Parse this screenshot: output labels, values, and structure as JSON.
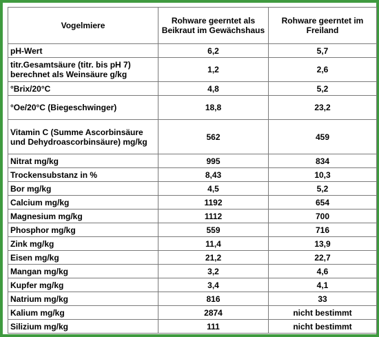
{
  "table": {
    "headers": [
      "Vogelmiere",
      "Rohware geerntet als Beikraut im Gewächshaus",
      "Rohware geerntet im Freiland"
    ],
    "rows": [
      {
        "label": "pH-Wert",
        "v1": "6,2",
        "v2": "5,7"
      },
      {
        "label": "titr.Gesamtsäure (titr. bis pH 7) berechnet als Weinsäure g/kg",
        "v1": "1,2",
        "v2": "2,6"
      },
      {
        "label": "°Brix/20°C",
        "v1": "4,8",
        "v2": "5,2"
      },
      {
        "label": "°Oe/20°C (Biegeschwinger)",
        "v1": "18,8",
        "v2": "23,2"
      },
      {
        "label": "Vitamin C (Summe Ascorbinsäure und Dehydroascorbinsäure) mg/kg",
        "v1": "562",
        "v2": "459"
      },
      {
        "label": "Nitrat mg/kg",
        "v1": "995",
        "v2": "834"
      },
      {
        "label": "Trockensubstanz in %",
        "v1": "8,43",
        "v2": "10,3"
      },
      {
        "label": "Bor mg/kg",
        "v1": "4,5",
        "v2": "5,2"
      },
      {
        "label": "Calcium mg/kg",
        "v1": "1192",
        "v2": "654"
      },
      {
        "label": "Magnesium mg/kg",
        "v1": "1112",
        "v2": "700"
      },
      {
        "label": "Phosphor mg/kg",
        "v1": "559",
        "v2": "716"
      },
      {
        "label": "Zink mg/kg",
        "v1": "11,4",
        "v2": "13,9"
      },
      {
        "label": "Eisen mg/kg",
        "v1": "21,2",
        "v2": "22,7"
      },
      {
        "label": "Mangan mg/kg",
        "v1": "3,2",
        "v2": "4,6"
      },
      {
        "label": "Kupfer mg/kg",
        "v1": "3,4",
        "v2": "4,1"
      },
      {
        "label": "Natrium mg/kg",
        "v1": "816",
        "v2": "33"
      },
      {
        "label": "Kalium mg/kg",
        "v1": "2874",
        "v2": "nicht bestimmt"
      },
      {
        "label": "Silizium mg/kg",
        "v1": "111",
        "v2": "nicht bestimmt"
      }
    ]
  },
  "colors": {
    "frame_border": "#3f9a3f",
    "grid": "#7a7a7a"
  }
}
